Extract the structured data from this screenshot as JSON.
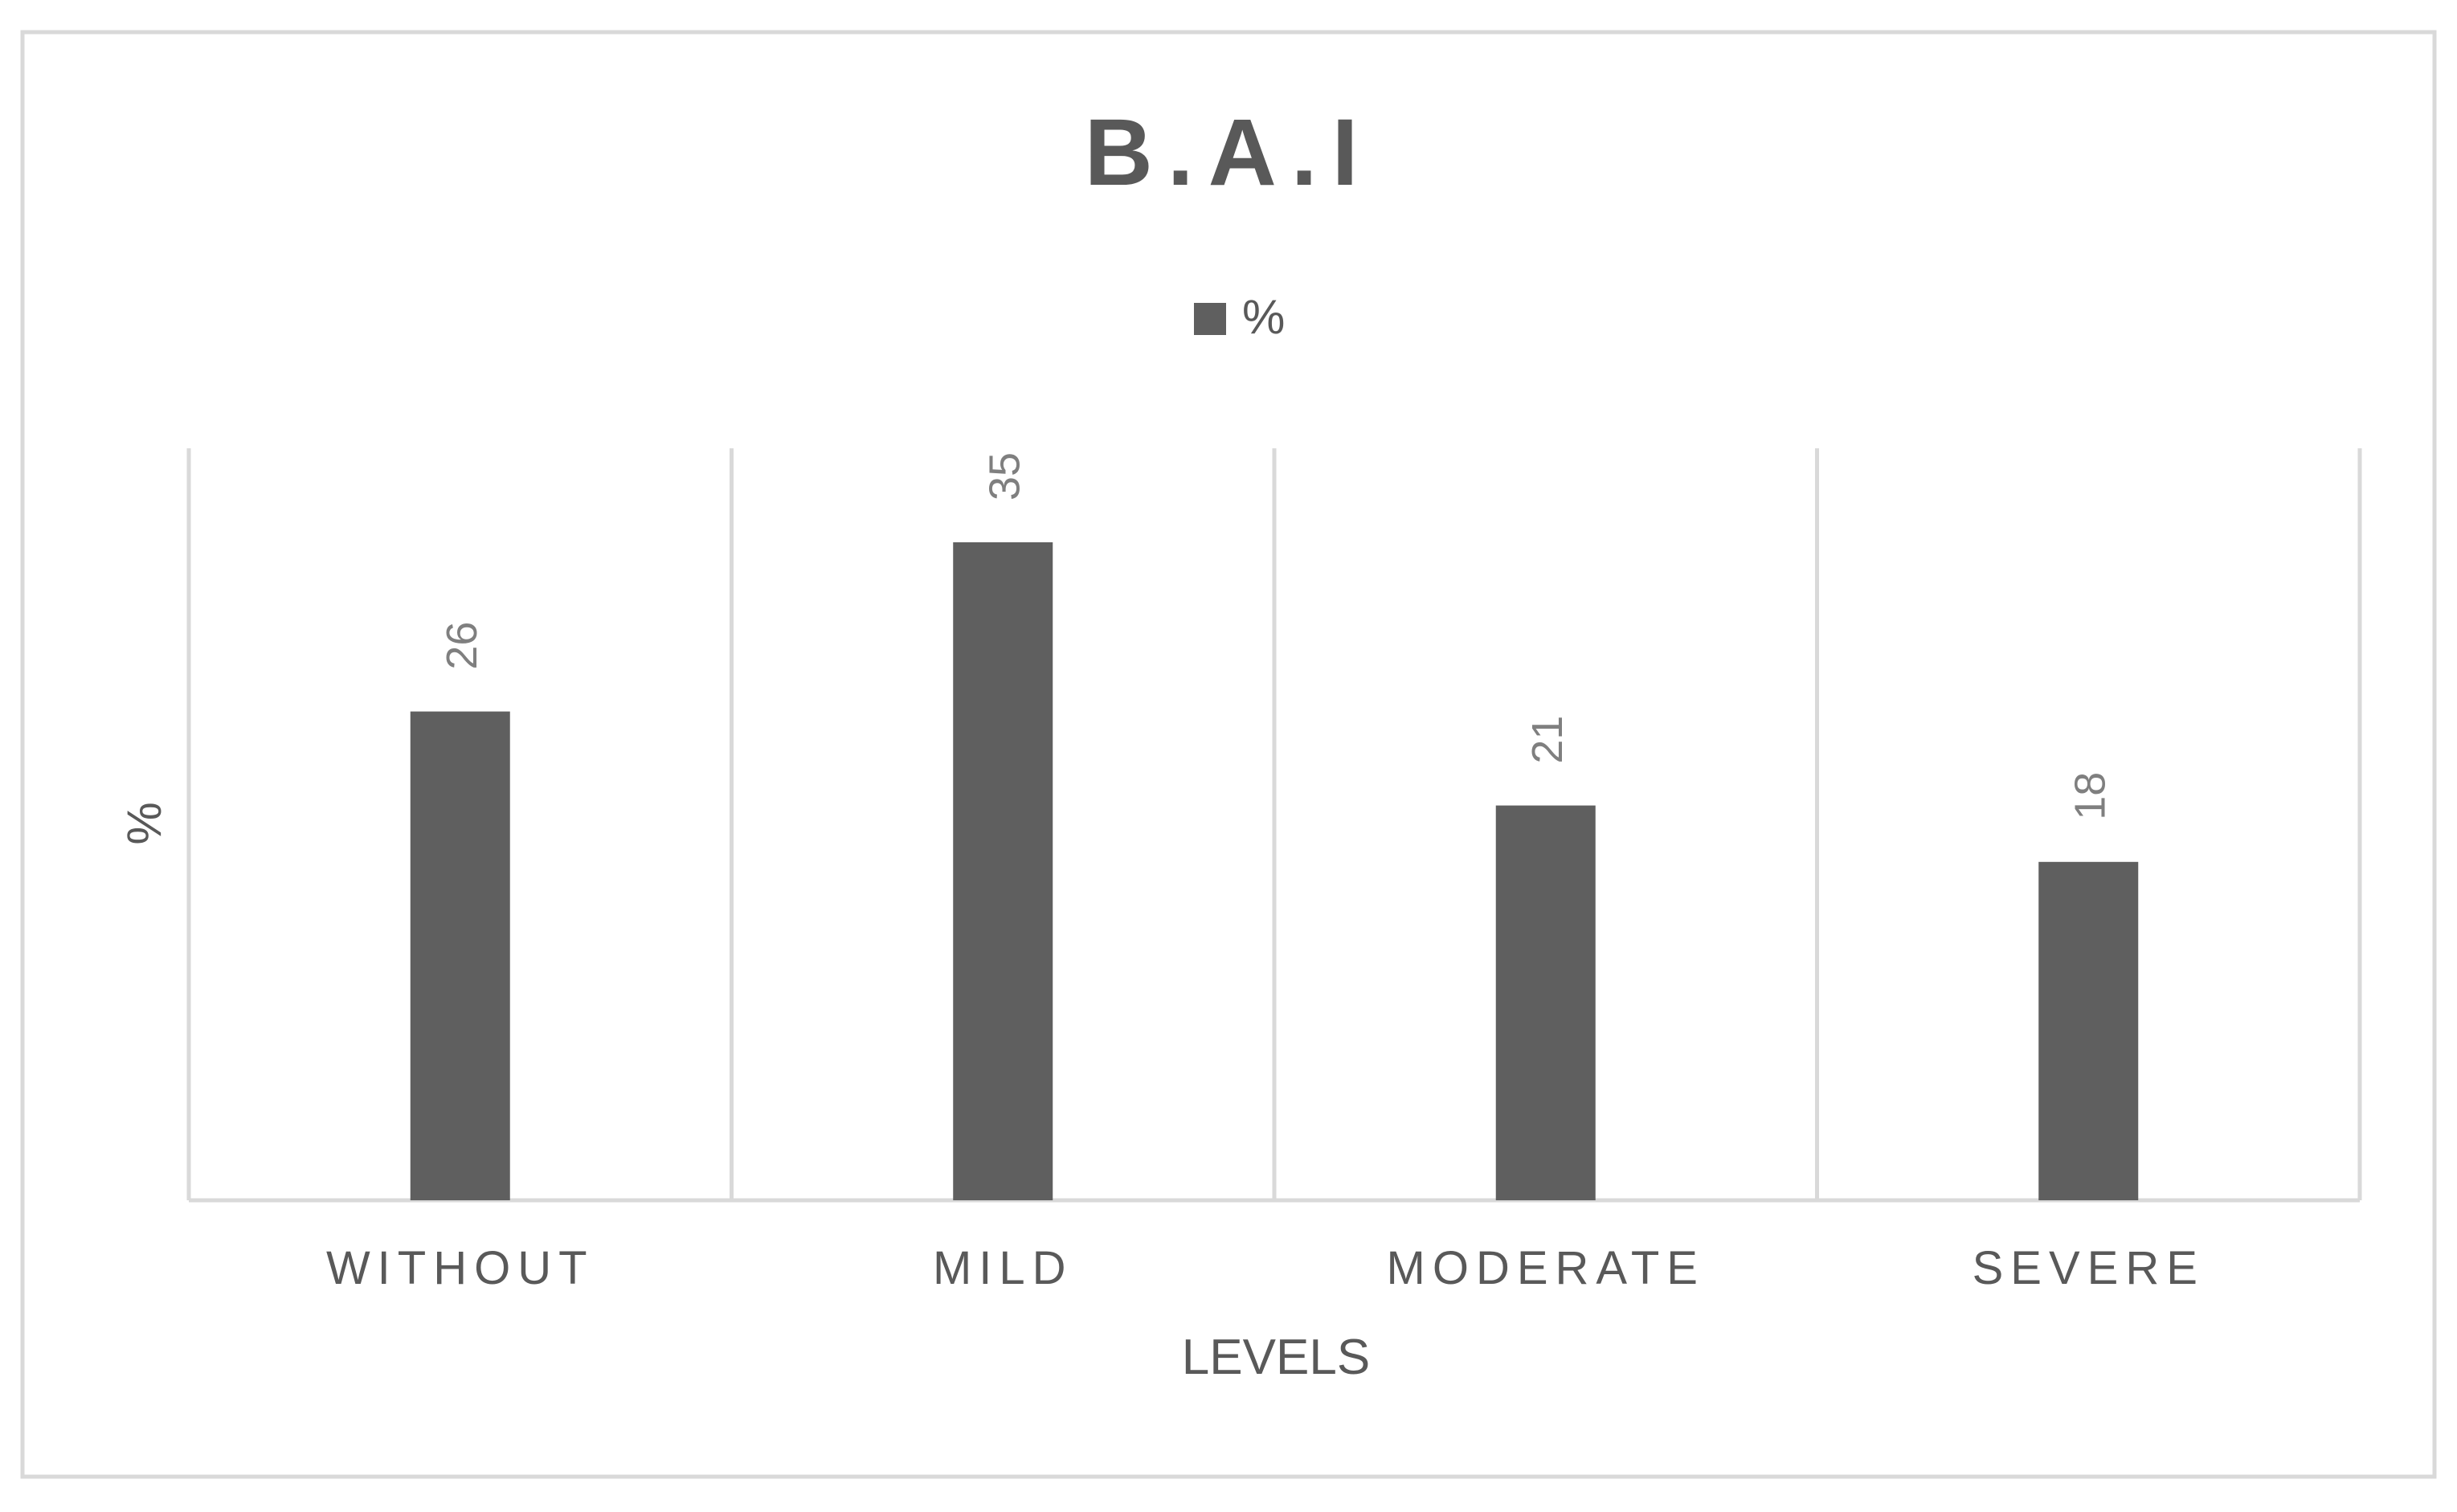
{
  "chart_data": {
    "type": "bar",
    "title": "B.A.I",
    "xlabel": "LEVELS",
    "ylabel": "%",
    "categories": [
      "WITHOUT",
      "MILD",
      "MODERATE",
      "SEVERE"
    ],
    "series": [
      {
        "name": "%",
        "values": [
          26,
          35,
          21,
          18
        ]
      }
    ],
    "data_labels": [
      "26",
      "35",
      "21",
      "18"
    ],
    "ylim": [
      0,
      40
    ],
    "show_y_axis_ticks": false,
    "gridlines": "vertical category separators",
    "legend": {
      "position": "top-center",
      "entries": [
        "%"
      ]
    },
    "colors": {
      "bar": "#5f5f5f",
      "title": "#595959",
      "text": "#595959",
      "data_label": "#7f7f7f",
      "gridline": "#d9d9d9",
      "border": "#d9d9d9",
      "background": "#ffffff"
    }
  }
}
